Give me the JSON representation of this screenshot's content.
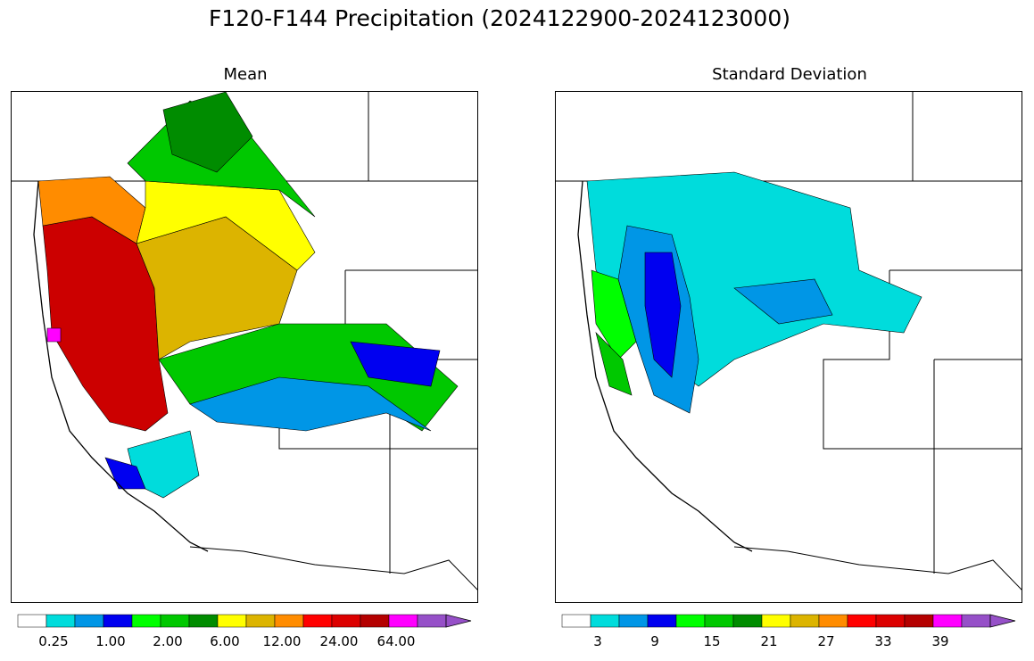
{
  "title": "F120-F144 Precipitation (2024122900-2024123000)",
  "panels": [
    {
      "name": "mean",
      "title": "Mean",
      "colorbar_labels": [
        "0.25",
        "1.00",
        "2.00",
        "6.00",
        "12.00",
        "24.00",
        "64.00"
      ],
      "colorbar_colors": [
        "#ffffff",
        "#00dcdc",
        "#0096e6",
        "#0000f0",
        "#00ff00",
        "#00c800",
        "#008c00",
        "#ffff00",
        "#dcb400",
        "#ff8c00",
        "#ff0000",
        "#dc0000",
        "#b40000",
        "#ff00ff",
        "#9650c8"
      ]
    },
    {
      "name": "stddev",
      "title": "Standard Deviation",
      "colorbar_labels": [
        "3",
        "9",
        "15",
        "21",
        "27",
        "33",
        "39"
      ],
      "colorbar_colors": [
        "#ffffff",
        "#00dcdc",
        "#0096e6",
        "#0000f0",
        "#00ff00",
        "#00c800",
        "#008c00",
        "#ffff00",
        "#dcb400",
        "#ff8c00",
        "#ff0000",
        "#dc0000",
        "#b40000",
        "#ff00ff",
        "#9650c8"
      ]
    }
  ]
}
